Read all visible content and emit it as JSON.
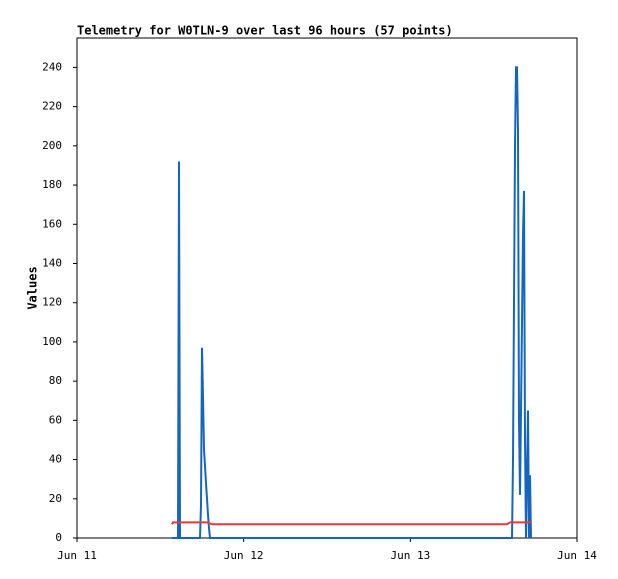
{
  "chart_data": {
    "type": "line",
    "title": "Telemetry for W0TLN-9 over last 96 hours (57 points)",
    "ylabel": "Values",
    "xlim": [
      0,
      3
    ],
    "xticks": [
      {
        "value": 0,
        "label": "Jun 11"
      },
      {
        "value": 1,
        "label": "Jun 12"
      },
      {
        "value": 2,
        "label": "Jun 13"
      },
      {
        "value": 3,
        "label": "Jun 14"
      }
    ],
    "ylim": [
      0,
      255
    ],
    "yticks": [
      0,
      20,
      40,
      60,
      80,
      100,
      120,
      140,
      160,
      180,
      200,
      220,
      240
    ],
    "grid": false,
    "series": [
      {
        "color": "#1565c0",
        "x": [
          0.57,
          0.606,
          0.612,
          0.618,
          0.738,
          0.744,
          0.75,
          0.756,
          0.762,
          0.768,
          0.774,
          0.78,
          0.786,
          0.792,
          0.798,
          2.61,
          2.616,
          2.622,
          2.628,
          2.634,
          2.64,
          2.646,
          2.652,
          2.658,
          2.664,
          2.67,
          2.676,
          2.682,
          2.688,
          2.694,
          2.706,
          2.712,
          2.718,
          2.724
        ],
        "values": [
          0,
          0,
          192,
          0,
          0,
          17,
          97,
          72,
          45,
          37,
          28,
          20,
          12,
          5,
          0,
          0,
          40,
          120,
          200,
          240,
          240,
          208,
          60,
          22,
          65,
          110,
          155,
          177,
          50,
          0,
          65,
          0,
          32,
          0
        ]
      },
      {
        "color": "#e53935",
        "x": [
          0.57,
          0.576,
          0.78,
          0.81,
          2.58,
          2.6,
          2.724
        ],
        "values": [
          7,
          8,
          8,
          7,
          7,
          8,
          8
        ]
      }
    ]
  }
}
